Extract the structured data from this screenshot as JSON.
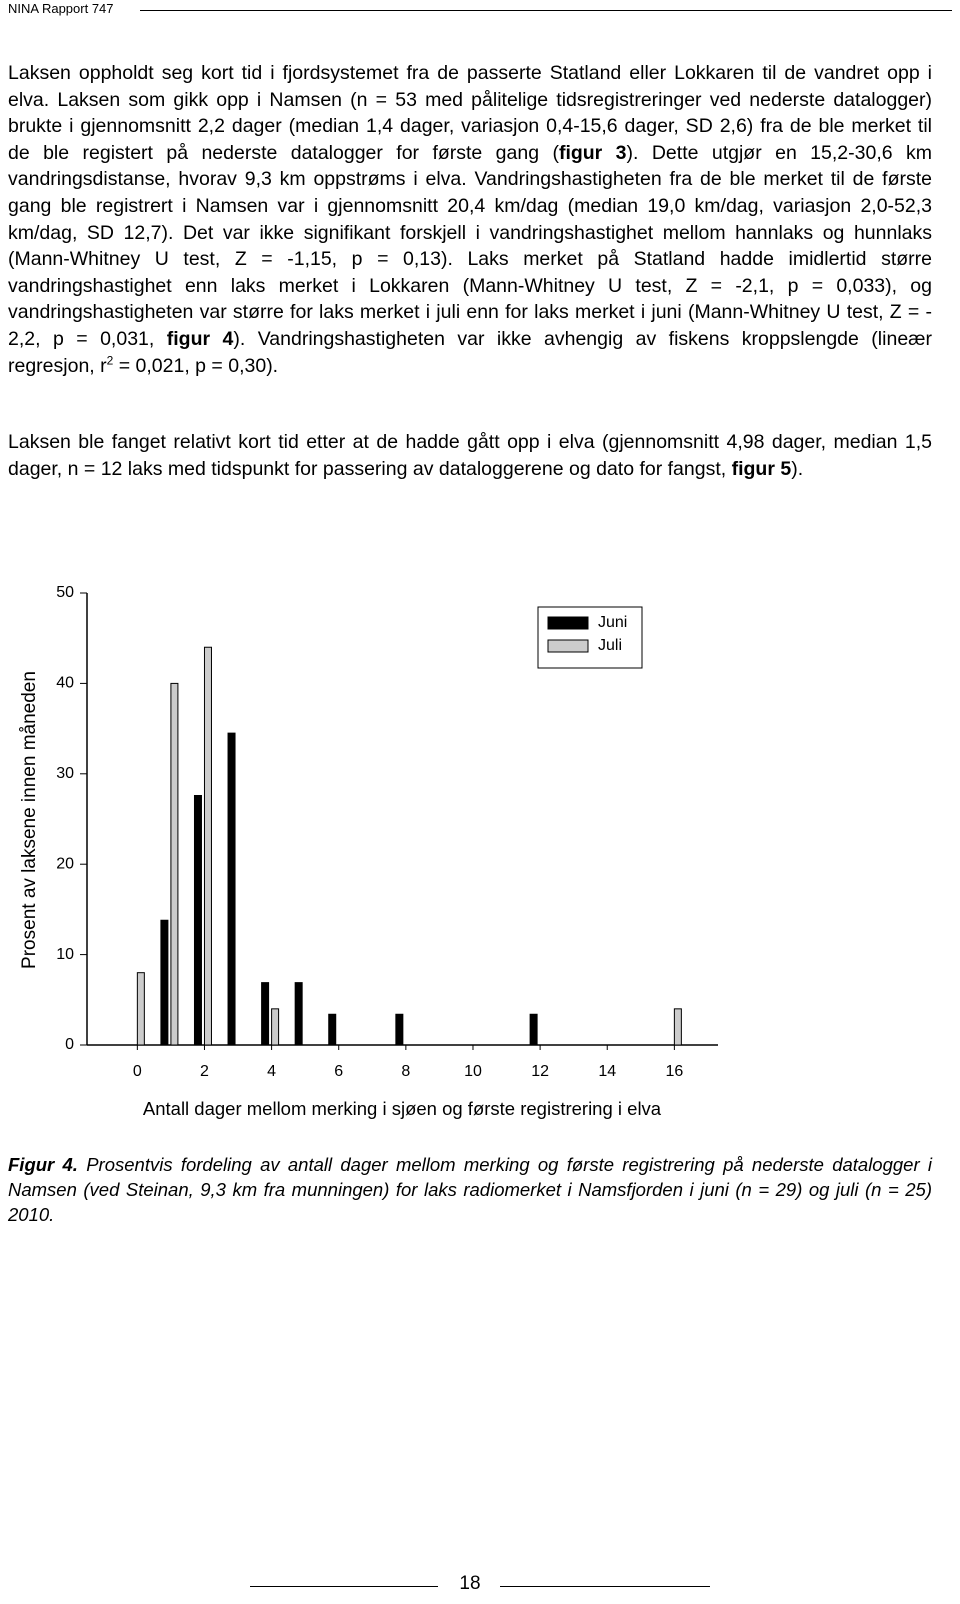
{
  "header": {
    "title": "NINA Rapport 747"
  },
  "paragraphs": [
    [
      "Laksen oppholdt seg kort tid i fjordsystemet fra de passerte Statland eller Lokkaren til de vandret opp i elva. Laksen som gikk opp i Namsen (n = 53 med pålitelige tidsregistreringer ved nederste datalogger) brukte i gjennomsnitt 2,2 dager (median 1,4 dager, variasjon 0,4-15,6 dager, SD 2,6) fra de ble merket til de ble registert på nederste datalogger for første gang (",
      "figur 3",
      "). Dette utgjør en 15,2-30,6 km vandringsdistanse, hvorav 9,3 km oppstrøms i elva. Vandringshastigheten fra de ble merket til de første gang ble registrert i Namsen var i gjennomsnitt 20,4 km/dag (median 19,0 km/dag, variasjon 2,0-52,3 km/dag, SD 12,7). Det var ikke signifikant forskjell i vandringshastighet mellom hannlaks og hunnlaks (Mann-Whitney U test, Z = -1,15, p = 0,13). Laks merket på Statland hadde imidlertid større vandringshastighet enn laks merket i Lokkaren (Mann-Whitney U test, Z = -2,1, p = 0,033), og vandringshastigheten var større for laks merket i juli enn for laks merket i juni (Mann-Whitney U test, Z = - 2,2, p = 0,031, ",
      "figur 4",
      "). Vandringshastigheten var ikke avhengig av fiskens kroppslengde (lineær regresjon, r",
      "2",
      " = 0,021, p = 0,30)."
    ],
    [
      "Laksen ble fanget relativt kort tid etter at de hadde gått opp i elva (gjennomsnitt 4,98 dager, median 1,5 dager, n = 12 laks med tidspunkt for passering av dataloggerene og dato for fangst, ",
      "figur 5",
      ")."
    ]
  ],
  "chart_data": {
    "type": "bar",
    "x_label": "Antall dager mellom merking i sjøen og første registrering i elva",
    "y_label": "Prosent av laksene innen måneden",
    "x": [
      0,
      1,
      2,
      3,
      4,
      5,
      6,
      7,
      8,
      9,
      10,
      11,
      12,
      13,
      14,
      15,
      16
    ],
    "series": [
      {
        "name": "Juni",
        "color": "#000000",
        "values": [
          0,
          13.8,
          27.6,
          34.5,
          6.9,
          6.9,
          3.4,
          0,
          3.4,
          0,
          0,
          0,
          3.4,
          0,
          0,
          0,
          0
        ]
      },
      {
        "name": "Juli",
        "color": "#cccccc",
        "values": [
          8,
          40,
          44,
          0,
          4,
          0,
          0,
          0,
          0,
          0,
          0,
          0,
          0,
          0,
          0,
          0,
          4
        ]
      }
    ],
    "xlim": [
      -1.5,
      17.3
    ],
    "xticks": [
      0,
      2,
      4,
      6,
      8,
      10,
      12,
      14,
      16
    ],
    "ylim": [
      0,
      50
    ],
    "yticks": [
      0,
      10,
      20,
      30,
      40,
      50
    ],
    "legend": "top-right"
  },
  "caption": {
    "label": "Figur 4.",
    "text": " Prosentvis fordeling av antall dager mellom merking og første registrering på nederste datalogger i Namsen (ved Steinan, 9,3 km fra munningen) for laks radiomerket i Namsfjorden i juni (n = 29) og juli (n = 25) 2010."
  },
  "page_number": "18"
}
